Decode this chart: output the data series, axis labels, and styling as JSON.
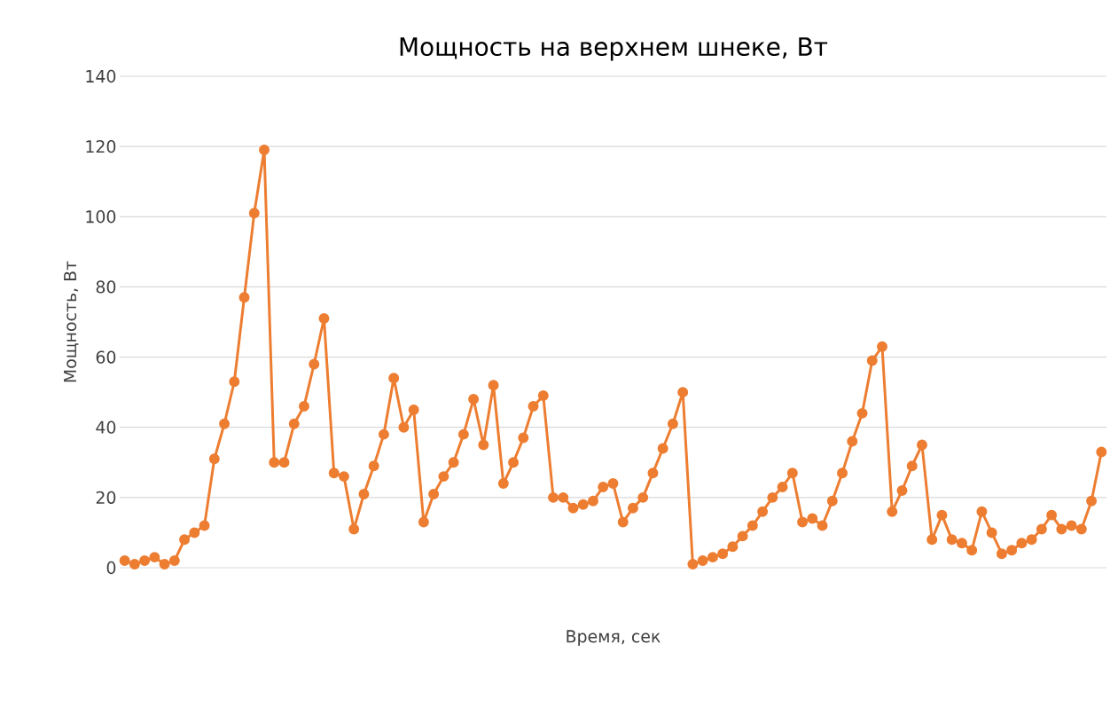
{
  "chart_data": {
    "type": "line",
    "title": "Мощность на верхнем шнеке, Вт",
    "xlabel": "Время, сек",
    "ylabel": "Мощность, Вт",
    "categories": [
      null,
      null,
      null,
      null,
      null,
      null,
      null,
      null,
      null,
      null,
      null,
      null,
      null,
      null,
      null,
      null,
      null,
      null,
      null,
      null,
      null,
      null,
      null,
      null,
      null,
      null,
      null,
      null,
      null,
      null,
      null,
      null,
      null,
      null,
      null,
      null,
      null,
      null,
      null,
      null,
      null,
      null,
      null,
      null,
      null,
      null,
      null,
      null,
      null,
      null,
      null,
      null,
      null,
      null,
      null,
      null,
      null,
      null,
      null,
      null,
      null,
      null,
      null,
      null,
      null,
      null,
      null,
      null,
      null,
      null,
      null,
      null,
      null,
      null,
      null,
      null,
      null,
      null,
      null,
      null,
      null,
      null,
      null,
      null,
      null,
      null,
      null,
      null,
      null,
      null,
      null,
      null,
      null,
      null,
      null,
      null,
      null,
      null,
      null
    ],
    "values": [
      2,
      1,
      2,
      3,
      1,
      2,
      8,
      10,
      12,
      31,
      41,
      53,
      77,
      101,
      119,
      30,
      30,
      41,
      46,
      58,
      71,
      27,
      26,
      11,
      21,
      29,
      38,
      54,
      40,
      45,
      13,
      21,
      26,
      30,
      38,
      48,
      35,
      52,
      24,
      30,
      37,
      46,
      49,
      20,
      20,
      17,
      18,
      19,
      23,
      24,
      13,
      17,
      20,
      27,
      34,
      41,
      50,
      1,
      2,
      3,
      4,
      6,
      9,
      12,
      16,
      20,
      23,
      27,
      13,
      14,
      12,
      19,
      27,
      36,
      44,
      59,
      63,
      16,
      22,
      29,
      35,
      8,
      15,
      8,
      7,
      5,
      16,
      10,
      4,
      5,
      7,
      8,
      11,
      15,
      11,
      12,
      11,
      19,
      33
    ],
    "color": "#ed7d31",
    "ylim": [
      0,
      140
    ],
    "yticks": [
      0,
      20,
      40,
      60,
      80,
      100,
      120,
      140
    ],
    "grid": "y",
    "marker": "circle",
    "line_style": "solid"
  }
}
